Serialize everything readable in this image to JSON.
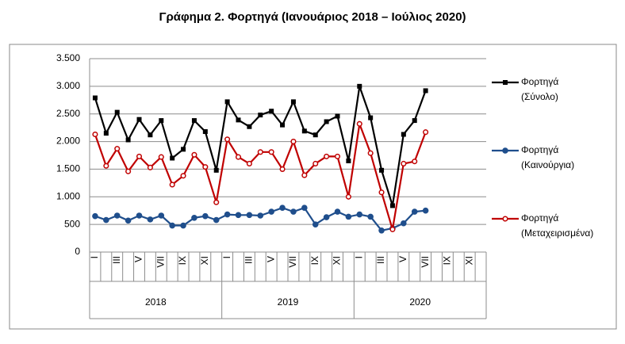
{
  "chart_data": {
    "type": "line",
    "title": "Γράφημα 2. Φορτηγά (Ιανουάριος 2018 – Ιούλιος 2020)",
    "categories": [
      "I",
      null,
      "III",
      null,
      "V",
      null,
      "VII",
      null,
      "IX",
      null,
      "XI",
      null,
      "I",
      null,
      "III",
      null,
      "V",
      null,
      "VII",
      null,
      "IX",
      null,
      "XI",
      null,
      "I",
      null,
      "III",
      null,
      "V",
      null,
      "VII",
      null,
      "IX",
      null,
      "XI",
      null
    ],
    "x_groups": [
      "2018",
      "2019",
      "2020"
    ],
    "series": [
      {
        "name": "Φορτηγά (Σύνολο)",
        "color": "#000000",
        "marker": "square",
        "values": [
          2790,
          2150,
          2530,
          2030,
          2400,
          2120,
          2380,
          1700,
          1860,
          2380,
          2180,
          1480,
          2720,
          2390,
          2270,
          2480,
          2550,
          2300,
          2720,
          2190,
          2120,
          2360,
          2460,
          1650,
          3000,
          2430,
          1480,
          840,
          2130,
          2380,
          2920,
          null,
          null,
          null,
          null,
          null
        ]
      },
      {
        "name": "Φορτηγά (Καινούργια)",
        "color": "#1f4e8c",
        "marker": "circle",
        "values": [
          650,
          580,
          660,
          570,
          660,
          590,
          660,
          480,
          480,
          620,
          650,
          580,
          680,
          670,
          670,
          660,
          730,
          800,
          730,
          800,
          500,
          630,
          730,
          640,
          680,
          640,
          390,
          430,
          520,
          730,
          750,
          null,
          null,
          null,
          null,
          null
        ]
      },
      {
        "name": "Φορτηγά (Μεταχειρισμένα)",
        "color": "#c00000",
        "marker": "open-circle",
        "values": [
          2130,
          1560,
          1870,
          1460,
          1730,
          1530,
          1720,
          1220,
          1380,
          1760,
          1540,
          900,
          2040,
          1720,
          1600,
          1810,
          1810,
          1500,
          2000,
          1390,
          1600,
          1730,
          1730,
          1000,
          2320,
          1790,
          1080,
          410,
          1600,
          1640,
          2170,
          null,
          null,
          null,
          null,
          null
        ]
      }
    ],
    "ylim": [
      0,
      3500
    ],
    "yticks": [
      0,
      500,
      {
        "value": 1000,
        "label": "1.000"
      },
      {
        "value": 1500,
        "label": "1.500"
      },
      {
        "value": 2000,
        "label": "2.000"
      },
      {
        "value": 2500,
        "label": "2.500"
      },
      {
        "value": 3000,
        "label": "3.000"
      },
      {
        "value": 3500,
        "label": "3.500"
      }
    ],
    "grid": true,
    "legend": "right"
  }
}
